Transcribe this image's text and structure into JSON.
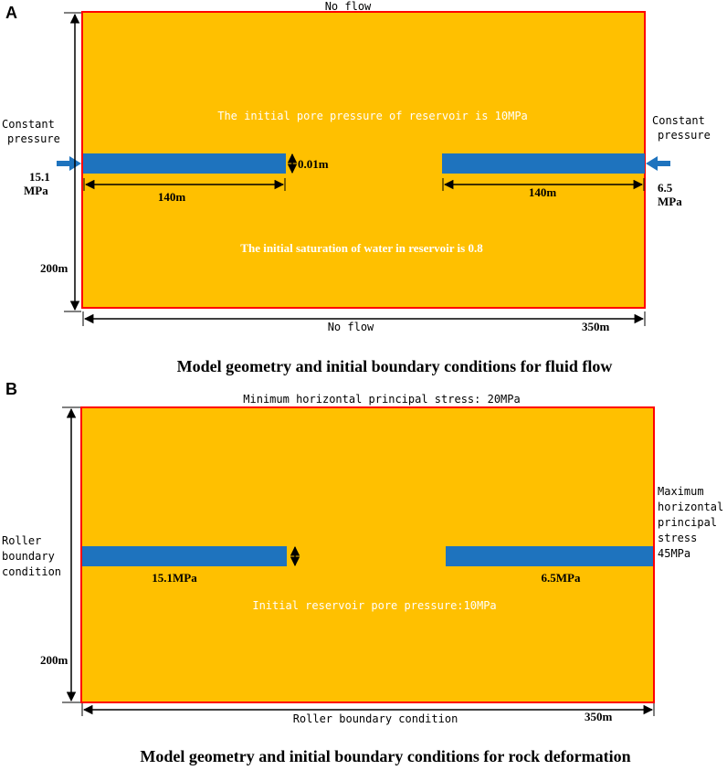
{
  "colors": {
    "reservoir": "#FFC000",
    "border": "#FF0000",
    "well": "#1E73BE",
    "annotation": "#FFFFFF",
    "text": "#000000"
  },
  "panelA": {
    "label": "A",
    "top_boundary": "No flow",
    "bottom_boundary": "No flow",
    "left_boundary_line1": "Constant",
    "left_boundary_line2": "pressure",
    "right_boundary_line1": "Constant",
    "right_boundary_line2": "pressure",
    "left_pressure_value": "15.1",
    "left_pressure_unit": "MPa",
    "right_pressure_value": "6.5",
    "right_pressure_unit": "MPa",
    "initial_pore_pressure": "The initial pore pressure of reservoir is 10MPa",
    "initial_saturation": "The initial saturation of water in reservoir is  0.8",
    "well_thickness": "0.01m",
    "left_well_length": "140m",
    "right_well_length": "140m",
    "height": "200m",
    "width": "350m",
    "caption": "Model geometry and initial boundary conditions for fluid flow"
  },
  "panelB": {
    "label": "B",
    "top_boundary": "Minimum horizontal principal stress: 20MPa",
    "bottom_boundary": "Roller boundary condition",
    "left_boundary_line1": "Roller",
    "left_boundary_line2": "boundary",
    "left_boundary_line3": "condition",
    "right_boundary_line1": "Maximum",
    "right_boundary_line2": "horizontal",
    "right_boundary_line3": "principal",
    "right_boundary_line4": "stress",
    "right_boundary_line5": "45MPa",
    "left_well_pressure": "15.1MPa",
    "right_well_pressure": "6.5MPa",
    "initial_pore_pressure": "Initial reservoir pore pressure:10MPa",
    "height": "200m",
    "width": "350m",
    "caption": "Model geometry and initial boundary conditions for rock deformation"
  }
}
